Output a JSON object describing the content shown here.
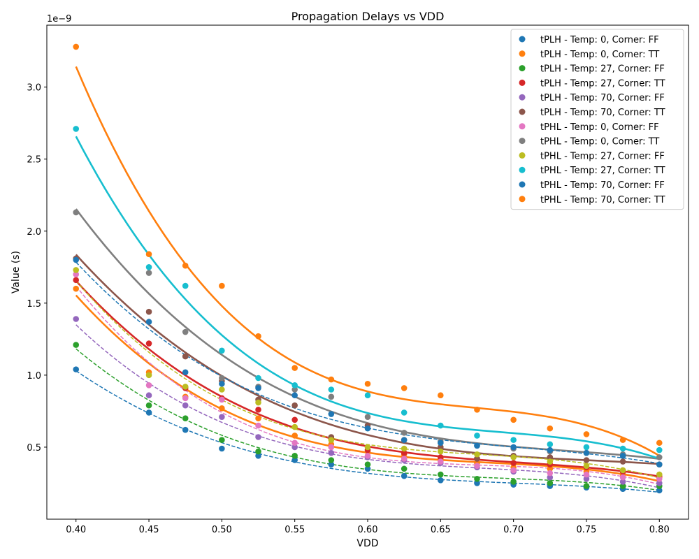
{
  "chart_data": {
    "type": "scatter",
    "title": "Propagation Delays vs VDD",
    "xlabel": "VDD",
    "ylabel": "Value (s)",
    "offset_text": "1e−9",
    "xlim": [
      0.38,
      0.82
    ],
    "ylim": [
      0.0,
      3.43
    ],
    "x_ticks": [
      "0.40",
      "0.45",
      "0.50",
      "0.55",
      "0.60",
      "0.65",
      "0.70",
      "0.75",
      "0.80"
    ],
    "y_ticks": [
      "0.5",
      "1.0",
      "1.5",
      "2.0",
      "2.5",
      "3.0"
    ],
    "legend_position": "upper right",
    "x": [
      0.4,
      0.45,
      0.475,
      0.5,
      0.525,
      0.55,
      0.575,
      0.6,
      0.625,
      0.65,
      0.675,
      0.7,
      0.725,
      0.75,
      0.775,
      0.8
    ],
    "series": [
      {
        "name": "tPLH - Temp: 0, Corner: FF",
        "color": "#1f77b4",
        "fit_style": "dashed",
        "values": [
          1.04,
          0.74,
          0.62,
          0.49,
          0.44,
          0.41,
          0.38,
          0.35,
          0.3,
          0.27,
          0.25,
          0.24,
          0.23,
          0.22,
          0.21,
          0.2
        ]
      },
      {
        "name": "tPLH - Temp: 0, Corner: TT",
        "color": "#ff7f0e",
        "fit_style": "solid",
        "values": [
          1.6,
          1.02,
          0.85,
          0.77,
          0.7,
          0.58,
          0.52,
          0.47,
          0.45,
          0.42,
          0.39,
          0.36,
          0.35,
          0.33,
          0.31,
          0.29
        ]
      },
      {
        "name": "tPLH - Temp: 27, Corner: FF",
        "color": "#2ca02c",
        "fit_style": "dashed",
        "values": [
          1.21,
          0.79,
          0.7,
          0.55,
          0.47,
          0.44,
          0.41,
          0.38,
          0.35,
          0.31,
          0.28,
          0.26,
          0.25,
          0.23,
          0.23,
          0.23
        ]
      },
      {
        "name": "tPLH - Temp: 27, Corner: TT",
        "color": "#d62728",
        "fit_style": "solid",
        "values": [
          1.66,
          1.22,
          0.91,
          0.84,
          0.76,
          0.69,
          0.56,
          0.48,
          0.46,
          0.43,
          0.42,
          0.39,
          0.38,
          0.36,
          0.33,
          0.3
        ]
      },
      {
        "name": "tPLH - Temp: 70, Corner: FF",
        "color": "#9467bd",
        "fit_style": "dashed",
        "values": [
          1.39,
          0.86,
          0.79,
          0.71,
          0.57,
          0.5,
          0.46,
          0.43,
          0.41,
          0.39,
          0.36,
          0.33,
          0.29,
          0.28,
          0.26,
          0.25
        ]
      },
      {
        "name": "tPLH - Temp: 70, Corner: TT",
        "color": "#8c564b",
        "fit_style": "solid",
        "values": [
          1.81,
          1.44,
          1.13,
          0.96,
          0.83,
          0.79,
          0.57,
          0.65,
          0.55,
          0.5,
          0.42,
          0.44,
          0.43,
          0.41,
          0.4,
          0.38
        ]
      },
      {
        "name": "tPHL - Temp: 0, Corner: FF",
        "color": "#e377c2",
        "fit_style": "dashed",
        "values": [
          1.7,
          0.93,
          0.84,
          0.83,
          0.65,
          0.53,
          0.5,
          0.44,
          0.42,
          0.4,
          0.37,
          0.34,
          0.32,
          0.31,
          0.29,
          0.28
        ]
      },
      {
        "name": "tPHL - Temp: 0, Corner: TT",
        "color": "#7f7f7f",
        "fit_style": "solid",
        "values": [
          2.13,
          1.71,
          1.3,
          0.98,
          0.92,
          0.9,
          0.85,
          0.71,
          0.6,
          0.54,
          0.51,
          0.49,
          0.47,
          0.46,
          0.45,
          0.43
        ]
      },
      {
        "name": "tPHL - Temp: 27, Corner: FF",
        "color": "#bcbd22",
        "fit_style": "dashed",
        "values": [
          1.73,
          1.0,
          0.92,
          0.9,
          0.81,
          0.64,
          0.55,
          0.5,
          0.49,
          0.47,
          0.45,
          0.43,
          0.4,
          0.37,
          0.34,
          0.31
        ]
      },
      {
        "name": "tPHL - Temp: 27, Corner: TT",
        "color": "#17becf",
        "fit_style": "solid",
        "values": [
          2.71,
          1.75,
          1.62,
          1.17,
          0.98,
          0.93,
          0.9,
          0.86,
          0.74,
          0.65,
          0.58,
          0.55,
          0.52,
          0.5,
          0.49,
          0.48
        ]
      },
      {
        "name": "tPHL - Temp: 70, Corner: FF",
        "color": "#1f77b4",
        "fit_style": "dashed",
        "values": [
          1.8,
          1.37,
          1.02,
          0.94,
          0.91,
          0.86,
          0.73,
          0.63,
          0.55,
          0.53,
          0.51,
          0.5,
          0.48,
          0.46,
          0.44,
          0.38
        ]
      },
      {
        "name": "tPHL - Temp: 70, Corner: TT",
        "color": "#ff7f0e",
        "fit_style": "solid",
        "values": [
          3.28,
          1.84,
          1.76,
          1.62,
          1.27,
          1.05,
          0.97,
          0.94,
          0.91,
          0.86,
          0.76,
          0.69,
          0.63,
          0.59,
          0.55,
          0.53
        ]
      }
    ]
  }
}
